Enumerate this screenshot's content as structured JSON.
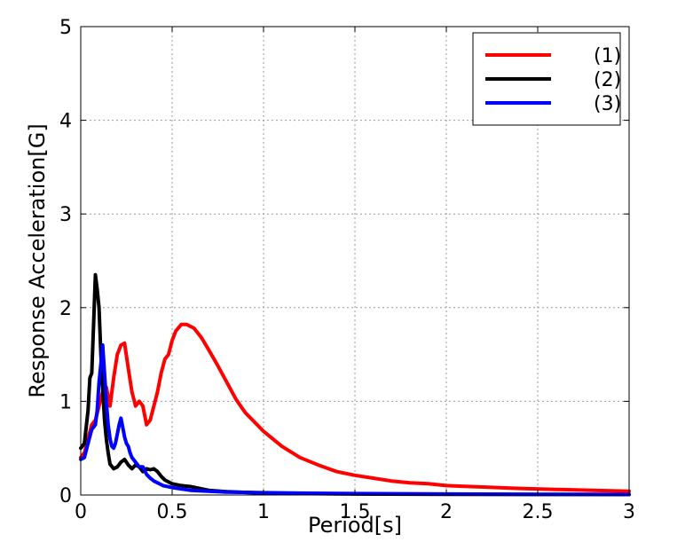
{
  "chart_data": {
    "type": "line",
    "title": "",
    "xlabel": "Period[s]",
    "ylabel": "Response Acceleration[G]",
    "xlim": [
      0,
      3
    ],
    "ylim": [
      0,
      5
    ],
    "xticks": [
      0,
      0.5,
      1,
      1.5,
      2,
      2.5,
      3
    ],
    "xtick_labels": [
      "0",
      "0.5",
      "1",
      "1.5",
      "2",
      "2.5",
      "3"
    ],
    "yticks": [
      0,
      1,
      2,
      3,
      4,
      5
    ],
    "ytick_labels": [
      "0",
      "1",
      "2",
      "3",
      "4",
      "5"
    ],
    "grid": true,
    "legend_position": "top-right",
    "series": [
      {
        "name": "(1)",
        "color": "#ff0000",
        "x": [
          0,
          0.02,
          0.04,
          0.06,
          0.08,
          0.1,
          0.12,
          0.14,
          0.16,
          0.18,
          0.2,
          0.22,
          0.24,
          0.26,
          0.28,
          0.3,
          0.32,
          0.34,
          0.36,
          0.38,
          0.4,
          0.42,
          0.44,
          0.46,
          0.48,
          0.5,
          0.52,
          0.55,
          0.58,
          0.62,
          0.66,
          0.7,
          0.75,
          0.8,
          0.85,
          0.9,
          1.0,
          1.1,
          1.2,
          1.3,
          1.4,
          1.5,
          1.6,
          1.7,
          1.8,
          1.9,
          2.0,
          2.2,
          2.4,
          2.6,
          2.8,
          3.0
        ],
        "y": [
          0.4,
          0.45,
          0.6,
          0.75,
          0.8,
          0.95,
          1.1,
          1.15,
          0.95,
          1.25,
          1.5,
          1.6,
          1.62,
          1.35,
          1.1,
          0.95,
          1.0,
          0.95,
          0.75,
          0.8,
          0.95,
          1.1,
          1.3,
          1.45,
          1.5,
          1.65,
          1.75,
          1.82,
          1.82,
          1.78,
          1.68,
          1.55,
          1.38,
          1.2,
          1.02,
          0.88,
          0.68,
          0.52,
          0.4,
          0.32,
          0.25,
          0.21,
          0.18,
          0.15,
          0.13,
          0.12,
          0.1,
          0.085,
          0.07,
          0.06,
          0.05,
          0.04
        ]
      },
      {
        "name": "(2)",
        "color": "#000000",
        "x": [
          0,
          0.02,
          0.04,
          0.05,
          0.06,
          0.07,
          0.08,
          0.09,
          0.1,
          0.11,
          0.12,
          0.13,
          0.14,
          0.15,
          0.16,
          0.18,
          0.2,
          0.22,
          0.24,
          0.26,
          0.28,
          0.3,
          0.32,
          0.34,
          0.36,
          0.38,
          0.4,
          0.42,
          0.44,
          0.46,
          0.5,
          0.55,
          0.6,
          0.65,
          0.7,
          0.8,
          1.0,
          1.2,
          1.5,
          2.0,
          2.5,
          3.0
        ],
        "y": [
          0.5,
          0.55,
          0.9,
          1.25,
          1.3,
          1.8,
          2.35,
          2.2,
          2.0,
          1.5,
          1.15,
          0.8,
          0.6,
          0.45,
          0.33,
          0.28,
          0.3,
          0.35,
          0.38,
          0.32,
          0.28,
          0.32,
          0.3,
          0.25,
          0.28,
          0.27,
          0.28,
          0.25,
          0.2,
          0.16,
          0.12,
          0.1,
          0.09,
          0.07,
          0.05,
          0.035,
          0.02,
          0.015,
          0.01,
          0.008,
          0.006,
          0.005
        ]
      },
      {
        "name": "(3)",
        "color": "#0000ff",
        "x": [
          0,
          0.02,
          0.04,
          0.06,
          0.08,
          0.09,
          0.1,
          0.11,
          0.12,
          0.13,
          0.14,
          0.15,
          0.16,
          0.17,
          0.18,
          0.19,
          0.2,
          0.21,
          0.22,
          0.23,
          0.24,
          0.25,
          0.26,
          0.27,
          0.28,
          0.3,
          0.32,
          0.34,
          0.36,
          0.38,
          0.4,
          0.45,
          0.5,
          0.6,
          0.7,
          0.8,
          1.0,
          1.2,
          1.5,
          2.0,
          2.5,
          3.0
        ],
        "y": [
          0.38,
          0.4,
          0.55,
          0.7,
          0.75,
          0.9,
          1.2,
          1.4,
          1.6,
          1.3,
          1.0,
          0.75,
          0.6,
          0.52,
          0.5,
          0.55,
          0.65,
          0.75,
          0.82,
          0.72,
          0.62,
          0.55,
          0.52,
          0.45,
          0.4,
          0.35,
          0.3,
          0.3,
          0.22,
          0.18,
          0.15,
          0.1,
          0.08,
          0.05,
          0.04,
          0.03,
          0.025,
          0.02,
          0.015,
          0.01,
          0.008,
          0.006
        ]
      }
    ]
  }
}
